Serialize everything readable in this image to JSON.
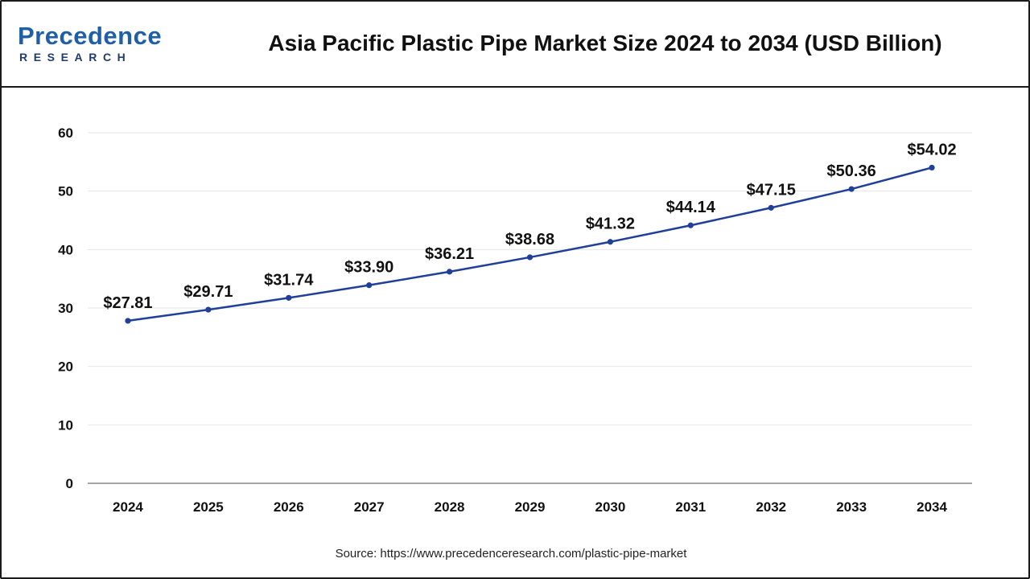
{
  "header": {
    "logo_main": "Precedence",
    "logo_sub": "RESEARCH",
    "title": "Asia Pacific Plastic Pipe Market Size 2024 to 2034 (USD Billion)"
  },
  "source": "Source: https://www.precedenceresearch.com/plastic-pipe-market",
  "colors": {
    "line": "#1f3f99",
    "grid": "#e6e6e6",
    "axis": "#888888",
    "text": "#111111",
    "brand_blue": "#1f5fa8"
  },
  "chart_data": {
    "type": "line",
    "title": "Asia Pacific Plastic Pipe Market Size 2024 to 2034 (USD Billion)",
    "xlabel": "",
    "ylabel": "",
    "categories": [
      "2024",
      "2025",
      "2026",
      "2027",
      "2028",
      "2029",
      "2030",
      "2031",
      "2032",
      "2033",
      "2034"
    ],
    "series": [
      {
        "values": [
          27.81,
          29.71,
          31.74,
          33.9,
          36.21,
          38.68,
          41.32,
          44.14,
          47.15,
          50.36,
          54.02
        ],
        "labels": [
          "$27.81",
          "$29.71",
          "$31.74",
          "$33.90",
          "$36.21",
          "$38.68",
          "$41.32",
          "$44.14",
          "$47.15",
          "$50.36",
          "$54.02"
        ]
      }
    ],
    "ylim": [
      0,
      60
    ],
    "yticks": [
      0,
      10,
      20,
      30,
      40,
      50,
      60
    ],
    "grid": true,
    "legend": "none"
  }
}
